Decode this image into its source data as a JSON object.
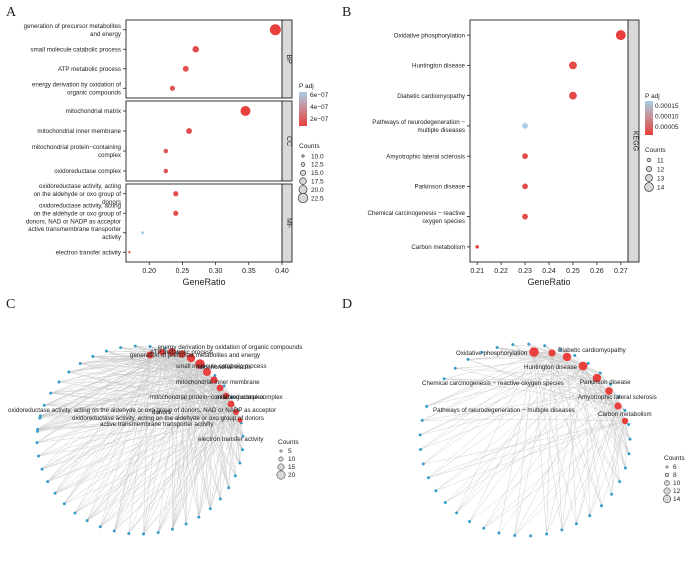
{
  "panels": [
    {
      "letter": "A"
    },
    {
      "letter": "B"
    },
    {
      "letter": "C"
    },
    {
      "letter": "D"
    }
  ],
  "chart_data": [
    {
      "panel": "A",
      "type": "scatter",
      "xlabel": "GeneRatio",
      "xlim": [
        0.165,
        0.4
      ],
      "xticks": [
        0.2,
        0.25,
        0.3,
        0.35,
        0.4
      ],
      "facets": [
        {
          "name": "BP",
          "categories": [
            {
              "label": [
                "generation of precursor metabolites",
                "and energy"
              ],
              "x": 0.39,
              "count": 22.5,
              "padj": 1e-07
            },
            {
              "label": [
                "small molecule catabolic process"
              ],
              "x": 0.27,
              "count": 16,
              "padj": 1.5e-07
            },
            {
              "label": [
                "ATP metabolic process"
              ],
              "x": 0.255,
              "count": 15,
              "padj": 1.5e-07
            },
            {
              "label": [
                "energy derivation by oxidation of",
                "organic compounds"
              ],
              "x": 0.235,
              "count": 14,
              "padj": 1.8e-07
            }
          ]
        },
        {
          "name": "CC",
          "categories": [
            {
              "label": [
                "mitochondrial matrix"
              ],
              "x": 0.345,
              "count": 21,
              "padj": 1e-07
            },
            {
              "label": [
                "mitochondrial inner membrane"
              ],
              "x": 0.26,
              "count": 15,
              "padj": 1.5e-07
            },
            {
              "label": [
                "mitochondrial protein−containing",
                "complex"
              ],
              "x": 0.225,
              "count": 13,
              "padj": 1.8e-07
            },
            {
              "label": [
                "oxidoreductase complex"
              ],
              "x": 0.225,
              "count": 13,
              "padj": 1.8e-07
            }
          ]
        },
        {
          "name": "MF",
          "categories": [
            {
              "label": [
                "oxidoreductase activity, acting",
                "on the aldehyde or oxo group of",
                "donors"
              ],
              "x": 0.24,
              "count": 14,
              "padj": 1.5e-07
            },
            {
              "label": [
                "oxidoreductase activity, acting",
                "on the aldehyde or oxo group of",
                "donors, NAD or NADP as acceptor"
              ],
              "x": 0.24,
              "count": 14,
              "padj": 1.5e-07
            },
            {
              "label": [
                "active transmembrane transporter",
                "activity"
              ],
              "x": 0.19,
              "count": 11,
              "padj": 6e-07
            },
            {
              "label": [
                "electron transfer activity"
              ],
              "x": 0.17,
              "count": 10,
              "padj": 2e-07
            }
          ]
        }
      ],
      "legend": {
        "color_title": "P adj",
        "color_ticks": [
          "6e−07",
          "4e−07",
          "2e−07"
        ],
        "size_title": "Counts",
        "size_ticks": [
          "10.0",
          "12.5",
          "15.0",
          "17.5",
          "20.0",
          "22.5"
        ]
      }
    },
    {
      "panel": "B",
      "type": "scatter",
      "xlabel": "GeneRatio",
      "xlim": [
        0.207,
        0.273
      ],
      "xticks": [
        0.21,
        0.22,
        0.23,
        0.24,
        0.25,
        0.26,
        0.27
      ],
      "facet": "KEGG",
      "categories": [
        {
          "label": [
            "Oxidative phosphorylation"
          ],
          "x": 0.27,
          "count": 14,
          "padj": 3e-05
        },
        {
          "label": [
            "Huntington disease"
          ],
          "x": 0.25,
          "count": 13,
          "padj": 4e-05
        },
        {
          "label": [
            "Diabetic cardiomyopathy"
          ],
          "x": 0.25,
          "count": 13,
          "padj": 4e-05
        },
        {
          "label": [
            "Pathways of neurodegeneration −",
            "multiple diseases"
          ],
          "x": 0.23,
          "count": 12,
          "padj": 0.00018
        },
        {
          "label": [
            "Amyotrophic lateral sclerosis"
          ],
          "x": 0.23,
          "count": 12,
          "padj": 4e-05
        },
        {
          "label": [
            "Parkinson disease"
          ],
          "x": 0.23,
          "count": 12,
          "padj": 4e-05
        },
        {
          "label": [
            "Chemical carcinogenesis − reactive",
            "oxygen species"
          ],
          "x": 0.23,
          "count": 12,
          "padj": 4e-05
        },
        {
          "label": [
            "Carbon metabolism"
          ],
          "x": 0.21,
          "count": 11,
          "padj": 3e-05
        }
      ],
      "legend": {
        "color_title": "P adj",
        "color_ticks": [
          "0.00015",
          "0.00010",
          "0.00005"
        ],
        "size_title": "Counts",
        "size_ticks": [
          "11",
          "12",
          "13",
          "14"
        ]
      }
    },
    {
      "panel": "C",
      "type": "network",
      "terms": [
        "energy derivation by oxidation of organic compounds",
        "generation of precursor metabolites and energy",
        "ATP metabolic process",
        "small molecule catabolic process",
        "mitochondrial matrix",
        "mitochondrial inner membrane",
        "oxidoreductase complex",
        "mitochondrial protein−containing complex",
        "oxidoreductase activity, acting on the aldehyde or oxo group of donors, NAD or NADP as acceptor",
        "donors",
        "oxidoreductase activity, acting on the aldehyde or oxo group of donors",
        "active transmembrane transporter activity",
        "electron transfer activity"
      ],
      "legend": {
        "size_title": "Counts",
        "size_ticks": [
          "5",
          "10",
          "15",
          "20"
        ]
      }
    },
    {
      "panel": "D",
      "type": "network",
      "terms": [
        "Oxidative phosphorylation",
        "Diabetic cardiomyopathy",
        "Huntington disease",
        "Chemical carcinogenesis − reactive oxygen species",
        "Parkinson disease",
        "Amyotrophic lateral sclerosis",
        "Pathways of neurodegeneration − multiple diseases",
        "Carbon metabolism"
      ],
      "legend": {
        "size_title": "Counts",
        "size_ticks": [
          "6",
          "8",
          "10",
          "12",
          "14"
        ]
      }
    }
  ]
}
